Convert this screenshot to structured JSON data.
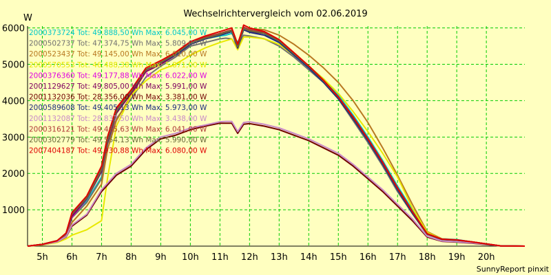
{
  "chart_data": {
    "type": "line",
    "title": "Wechselrichtervergleich vom 02.06.2019",
    "ylabel": "W",
    "footer": "SunnyReport pinxit",
    "x_ticks": [
      "5h",
      "6h",
      "7h",
      "8h",
      "9h",
      "10h",
      "11h",
      "12h",
      "13h",
      "14h",
      "15h",
      "16h",
      "17h",
      "18h",
      "19h",
      "20h"
    ],
    "y_ticks": [
      "1000",
      "2000",
      "3000",
      "4000",
      "5000",
      "6000"
    ],
    "xlim": [
      4.5,
      21.3
    ],
    "ylim": [
      0,
      6050
    ],
    "grid": true,
    "background": "#ffffc0",
    "plot_background": "#ffffc0",
    "grid_color": "#00cc00",
    "legend_entries": [
      {
        "text": "2000373724 Tot: 49.888,50 Wh Max: 6.045,00 W",
        "color": "#00c8c8"
      },
      {
        "text": "2000502737 Tot: 47.374,75 Wh Max: 5.809,00 W",
        "color": "#707070"
      },
      {
        "text": "2000523437 Tot: 49.145,00 Wh Max: 6.010,00 W",
        "color": "#b87820"
      },
      {
        "text": "2000570553 Tot: 46.488,38 Wh Max: 5.871,00 W",
        "color": "#e8e800"
      },
      {
        "text": "2000376360 Tot: 49.177,88 Wh Max: 6.022,00 W",
        "color": "#e000e0"
      },
      {
        "text": "2001129627 Tot: 49.805,00 Wh Max: 5.991,00 W",
        "color": "#800060"
      },
      {
        "text": "2001132036 Tot: 28.356,00 Wh Max: 3.381,00 W",
        "color": "#700000"
      },
      {
        "text": "2000589608 Tot: 49.405,13 Wh Max: 5.973,00 W",
        "color": "#1c2a80"
      },
      {
        "text": "2001132087 Tot: 28.837,50 Wh Max: 3.438,00 W",
        "color": "#c888c8"
      },
      {
        "text": "2000316121 Tot: 49.465,63 Wh Max: 6.041,00 W",
        "color": "#b03838"
      },
      {
        "text": "2000302779 Tot: 49.554,13 Wh Max: 5.990,00 W",
        "color": "#6a6a3a"
      },
      {
        "text": "2007404187 Tot: 49.930,88 Wh Max: 6.080,00 W",
        "color": "#e00000"
      }
    ],
    "series": [
      {
        "name": "2000373724",
        "color": "#00c8c8",
        "x": [
          4.5,
          5,
          5.5,
          5.8,
          6,
          6.5,
          7,
          7.2,
          7.5,
          8,
          8.5,
          9,
          9.5,
          10,
          10.5,
          11,
          11.2,
          11.4,
          11.6,
          11.8,
          12,
          12.5,
          13,
          13.5,
          14,
          14.5,
          15,
          15.5,
          16,
          16.5,
          17,
          17.5,
          18,
          18.5,
          19,
          19.5,
          20,
          20.5,
          21.3
        ],
        "y": [
          0,
          50,
          150,
          350,
          850,
          1250,
          1900,
          2900,
          3700,
          4250,
          4850,
          5050,
          5250,
          5550,
          5700,
          5780,
          5800,
          5850,
          5600,
          5950,
          5900,
          5850,
          5600,
          5300,
          4950,
          4600,
          4150,
          3600,
          3000,
          2350,
          1650,
          1000,
          350,
          200,
          180,
          120,
          60,
          5,
          0
        ]
      },
      {
        "name": "2000502737",
        "color": "#707070",
        "x": [
          4.5,
          5,
          5.5,
          5.8,
          6,
          6.5,
          7,
          7.2,
          7.5,
          8,
          8.5,
          9,
          9.5,
          10,
          10.5,
          11,
          11.2,
          11.4,
          11.6,
          11.8,
          12,
          12.5,
          13,
          13.5,
          14,
          14.5,
          15,
          15.5,
          16,
          16.5,
          17,
          17.5,
          18,
          18.5,
          19,
          19.5,
          20,
          20.5,
          21.3
        ],
        "y": [
          0,
          40,
          130,
          300,
          780,
          1200,
          1850,
          2800,
          3500,
          4050,
          4650,
          4950,
          5200,
          5500,
          5600,
          5700,
          5720,
          5700,
          5450,
          5800,
          5780,
          5700,
          5500,
          5200,
          4850,
          4500,
          4050,
          3450,
          2850,
          2200,
          1500,
          900,
          320,
          180,
          160,
          110,
          50,
          5,
          0
        ]
      },
      {
        "name": "2000523437",
        "color": "#b87820",
        "x": [
          4.5,
          5,
          5.5,
          5.8,
          6,
          6.5,
          7,
          7.2,
          7.5,
          8,
          8.5,
          9,
          9.5,
          10,
          10.5,
          11,
          11.2,
          11.4,
          11.6,
          11.8,
          12,
          12.5,
          13,
          13.5,
          14,
          14.5,
          15,
          15.5,
          16,
          16.5,
          17,
          17.5,
          18,
          18.5,
          19,
          19.5,
          20,
          20.5,
          21.3
        ],
        "y": [
          0,
          40,
          120,
          280,
          650,
          1100,
          1700,
          2650,
          3450,
          4150,
          4800,
          5000,
          5300,
          5550,
          5750,
          5800,
          5850,
          5900,
          5500,
          5950,
          5980,
          5950,
          5800,
          5550,
          5250,
          4900,
          4500,
          4000,
          3400,
          2700,
          1950,
          1150,
          400,
          200,
          170,
          120,
          60,
          5,
          0
        ]
      },
      {
        "name": "2000570553",
        "color": "#e8e800",
        "x": [
          4.5,
          5,
          5.5,
          5.8,
          6,
          6.5,
          7,
          7.2,
          7.5,
          8,
          8.5,
          9,
          9.5,
          10,
          10.5,
          11,
          11.2,
          11.4,
          11.6,
          11.8,
          12,
          12.5,
          13,
          13.5,
          14,
          14.5,
          15,
          15.5,
          16,
          16.5,
          17,
          17.5,
          18,
          18.5,
          19,
          19.5,
          20,
          20.5,
          21.3
        ],
        "y": [
          0,
          30,
          100,
          200,
          300,
          450,
          700,
          1850,
          3300,
          4150,
          4550,
          4850,
          5000,
          5250,
          5450,
          5600,
          5650,
          5700,
          5400,
          5750,
          5750,
          5700,
          5550,
          5250,
          4950,
          4600,
          4200,
          3700,
          3150,
          2550,
          1900,
          1050,
          380,
          190,
          160,
          110,
          50,
          5,
          0
        ]
      },
      {
        "name": "2000376360",
        "color": "#e000e0",
        "x": [
          4.5,
          5,
          5.5,
          5.8,
          6,
          6.5,
          7,
          7.2,
          7.5,
          8,
          8.5,
          9,
          9.5,
          10,
          10.5,
          11,
          11.2,
          11.4,
          11.6,
          11.8,
          12,
          12.5,
          13,
          13.5,
          14,
          14.5,
          15,
          15.5,
          16,
          16.5,
          17,
          17.5,
          18,
          18.5,
          19,
          19.5,
          20,
          20.5,
          21.3
        ],
        "y": [
          0,
          50,
          150,
          330,
          800,
          1300,
          2100,
          2900,
          3700,
          4250,
          4850,
          5050,
          5250,
          5550,
          5700,
          5800,
          5850,
          5900,
          5450,
          6000,
          5950,
          5850,
          5650,
          5300,
          4950,
          4550,
          4100,
          3550,
          2950,
          2300,
          1600,
          950,
          340,
          190,
          170,
          120,
          60,
          5,
          0
        ]
      },
      {
        "name": "2001129627",
        "color": "#800060",
        "x": [
          4.5,
          5,
          5.5,
          5.8,
          6,
          6.5,
          7,
          7.2,
          7.5,
          8,
          8.5,
          9,
          9.5,
          10,
          10.5,
          11,
          11.2,
          11.4,
          11.6,
          11.8,
          12,
          12.5,
          13,
          13.5,
          14,
          14.5,
          15,
          15.5,
          16,
          16.5,
          17,
          17.5,
          18,
          18.5,
          19,
          19.5,
          20,
          20.5,
          21.3
        ],
        "y": [
          0,
          50,
          150,
          340,
          820,
          1300,
          2050,
          2850,
          3650,
          4200,
          4800,
          5000,
          5250,
          5550,
          5700,
          5800,
          5850,
          5900,
          5450,
          5980,
          5900,
          5850,
          5650,
          5300,
          4950,
          4550,
          4100,
          3550,
          2950,
          2300,
          1600,
          950,
          340,
          190,
          170,
          120,
          60,
          5,
          0
        ]
      },
      {
        "name": "2001132036",
        "color": "#700000",
        "x": [
          4.5,
          5,
          5.5,
          5.8,
          6,
          6.5,
          7,
          7.5,
          8,
          8.5,
          9,
          9.5,
          10,
          10.5,
          11,
          11.2,
          11.4,
          11.6,
          11.8,
          12,
          12.5,
          13,
          13.5,
          14,
          14.5,
          15,
          15.5,
          16,
          16.5,
          17,
          17.5,
          18,
          18.5,
          19,
          19.5,
          20,
          20.5,
          21.3
        ],
        "y": [
          0,
          40,
          120,
          250,
          550,
          850,
          1500,
          1950,
          2200,
          2650,
          2950,
          3050,
          3200,
          3300,
          3380,
          3380,
          3380,
          3100,
          3350,
          3370,
          3300,
          3200,
          3050,
          2900,
          2700,
          2500,
          2200,
          1850,
          1500,
          1100,
          700,
          250,
          130,
          110,
          80,
          40,
          5,
          0
        ]
      },
      {
        "name": "2000589608",
        "color": "#1c2a80",
        "x": [
          4.5,
          5,
          5.5,
          5.8,
          6,
          6.5,
          7,
          7.2,
          7.5,
          8,
          8.5,
          9,
          9.5,
          10,
          10.5,
          11,
          11.2,
          11.4,
          11.6,
          11.8,
          12,
          12.5,
          13,
          13.5,
          14,
          14.5,
          15,
          15.5,
          16,
          16.5,
          17,
          17.5,
          18,
          18.5,
          19,
          19.5,
          20,
          20.5,
          21.3
        ],
        "y": [
          0,
          50,
          150,
          340,
          900,
          1350,
          2100,
          2900,
          3700,
          4250,
          4850,
          5050,
          5250,
          5550,
          5700,
          5800,
          5850,
          5900,
          5450,
          5950,
          5880,
          5800,
          5600,
          5250,
          4900,
          4500,
          4050,
          3500,
          2900,
          2250,
          1550,
          900,
          330,
          180,
          160,
          110,
          50,
          5,
          0
        ]
      },
      {
        "name": "2001132087",
        "color": "#c888c8",
        "x": [
          4.5,
          5,
          5.5,
          5.8,
          6,
          6.5,
          7,
          7.5,
          8,
          8.5,
          9,
          9.5,
          10,
          10.5,
          11,
          11.2,
          11.4,
          11.6,
          11.8,
          12,
          12.5,
          13,
          13.5,
          14,
          14.5,
          15,
          15.5,
          16,
          16.5,
          17,
          17.5,
          18,
          18.5,
          19,
          19.5,
          20,
          20.5,
          21.3
        ],
        "y": [
          0,
          40,
          120,
          260,
          580,
          880,
          1550,
          2000,
          2250,
          2700,
          3000,
          3100,
          3250,
          3330,
          3420,
          3430,
          3430,
          3150,
          3400,
          3420,
          3350,
          3250,
          3100,
          2950,
          2750,
          2550,
          2250,
          1900,
          1550,
          1150,
          750,
          270,
          140,
          120,
          90,
          45,
          5,
          0
        ]
      },
      {
        "name": "2000316121",
        "color": "#b03838",
        "x": [
          4.5,
          5,
          5.5,
          5.8,
          6,
          6.5,
          7,
          7.2,
          7.5,
          8,
          8.5,
          9,
          9.5,
          10,
          10.5,
          11,
          11.2,
          11.4,
          11.6,
          11.8,
          12,
          12.5,
          13,
          13.5,
          14,
          14.5,
          15,
          15.5,
          16,
          16.5,
          17,
          17.5,
          18,
          18.5,
          19,
          19.5,
          20,
          20.5,
          21.3
        ],
        "y": [
          0,
          50,
          150,
          350,
          900,
          1350,
          2150,
          2950,
          3750,
          4250,
          4850,
          5050,
          5300,
          5600,
          5750,
          5850,
          5900,
          5950,
          5500,
          6030,
          5950,
          5880,
          5650,
          5300,
          4950,
          4550,
          4100,
          3550,
          2950,
          2300,
          1600,
          950,
          340,
          190,
          170,
          120,
          60,
          5,
          0
        ]
      },
      {
        "name": "2000302779",
        "color": "#6a6a3a",
        "x": [
          4.5,
          5,
          5.5,
          5.8,
          6,
          6.5,
          7,
          7.2,
          7.5,
          8,
          8.5,
          9,
          9.5,
          10,
          10.5,
          11,
          11.2,
          11.4,
          11.6,
          11.8,
          12,
          12.5,
          13,
          13.5,
          14,
          14.5,
          15,
          15.5,
          16,
          16.5,
          17,
          17.5,
          18,
          18.5,
          19,
          19.5,
          20,
          20.5,
          21.3
        ],
        "y": [
          0,
          50,
          150,
          340,
          880,
          1320,
          2100,
          2900,
          3700,
          4250,
          4850,
          5050,
          5280,
          5580,
          5720,
          5820,
          5880,
          5920,
          5480,
          5980,
          5920,
          5850,
          5640,
          5290,
          4940,
          4540,
          4090,
          3540,
          2940,
          2290,
          1590,
          940,
          335,
          185,
          165,
          115,
          55,
          5,
          0
        ]
      },
      {
        "name": "2007404187",
        "color": "#e00000",
        "x": [
          4.5,
          5,
          5.5,
          5.8,
          6,
          6.5,
          7,
          7.2,
          7.5,
          8,
          8.5,
          9,
          9.5,
          10,
          10.5,
          11,
          11.2,
          11.4,
          11.6,
          11.8,
          12,
          12.5,
          13,
          13.5,
          14,
          14.5,
          15,
          15.5,
          16,
          16.5,
          17,
          17.5,
          18,
          18.5,
          19,
          19.5,
          20,
          20.5,
          21.3
        ],
        "y": [
          0,
          50,
          150,
          360,
          920,
          1380,
          2200,
          3000,
          3800,
          4300,
          4900,
          5100,
          5330,
          5620,
          5780,
          5900,
          5950,
          6000,
          5550,
          6080,
          6000,
          5900,
          5680,
          5320,
          4960,
          4560,
          4100,
          3550,
          2950,
          2300,
          1600,
          950,
          340,
          190,
          170,
          120,
          60,
          5,
          0
        ]
      }
    ]
  }
}
